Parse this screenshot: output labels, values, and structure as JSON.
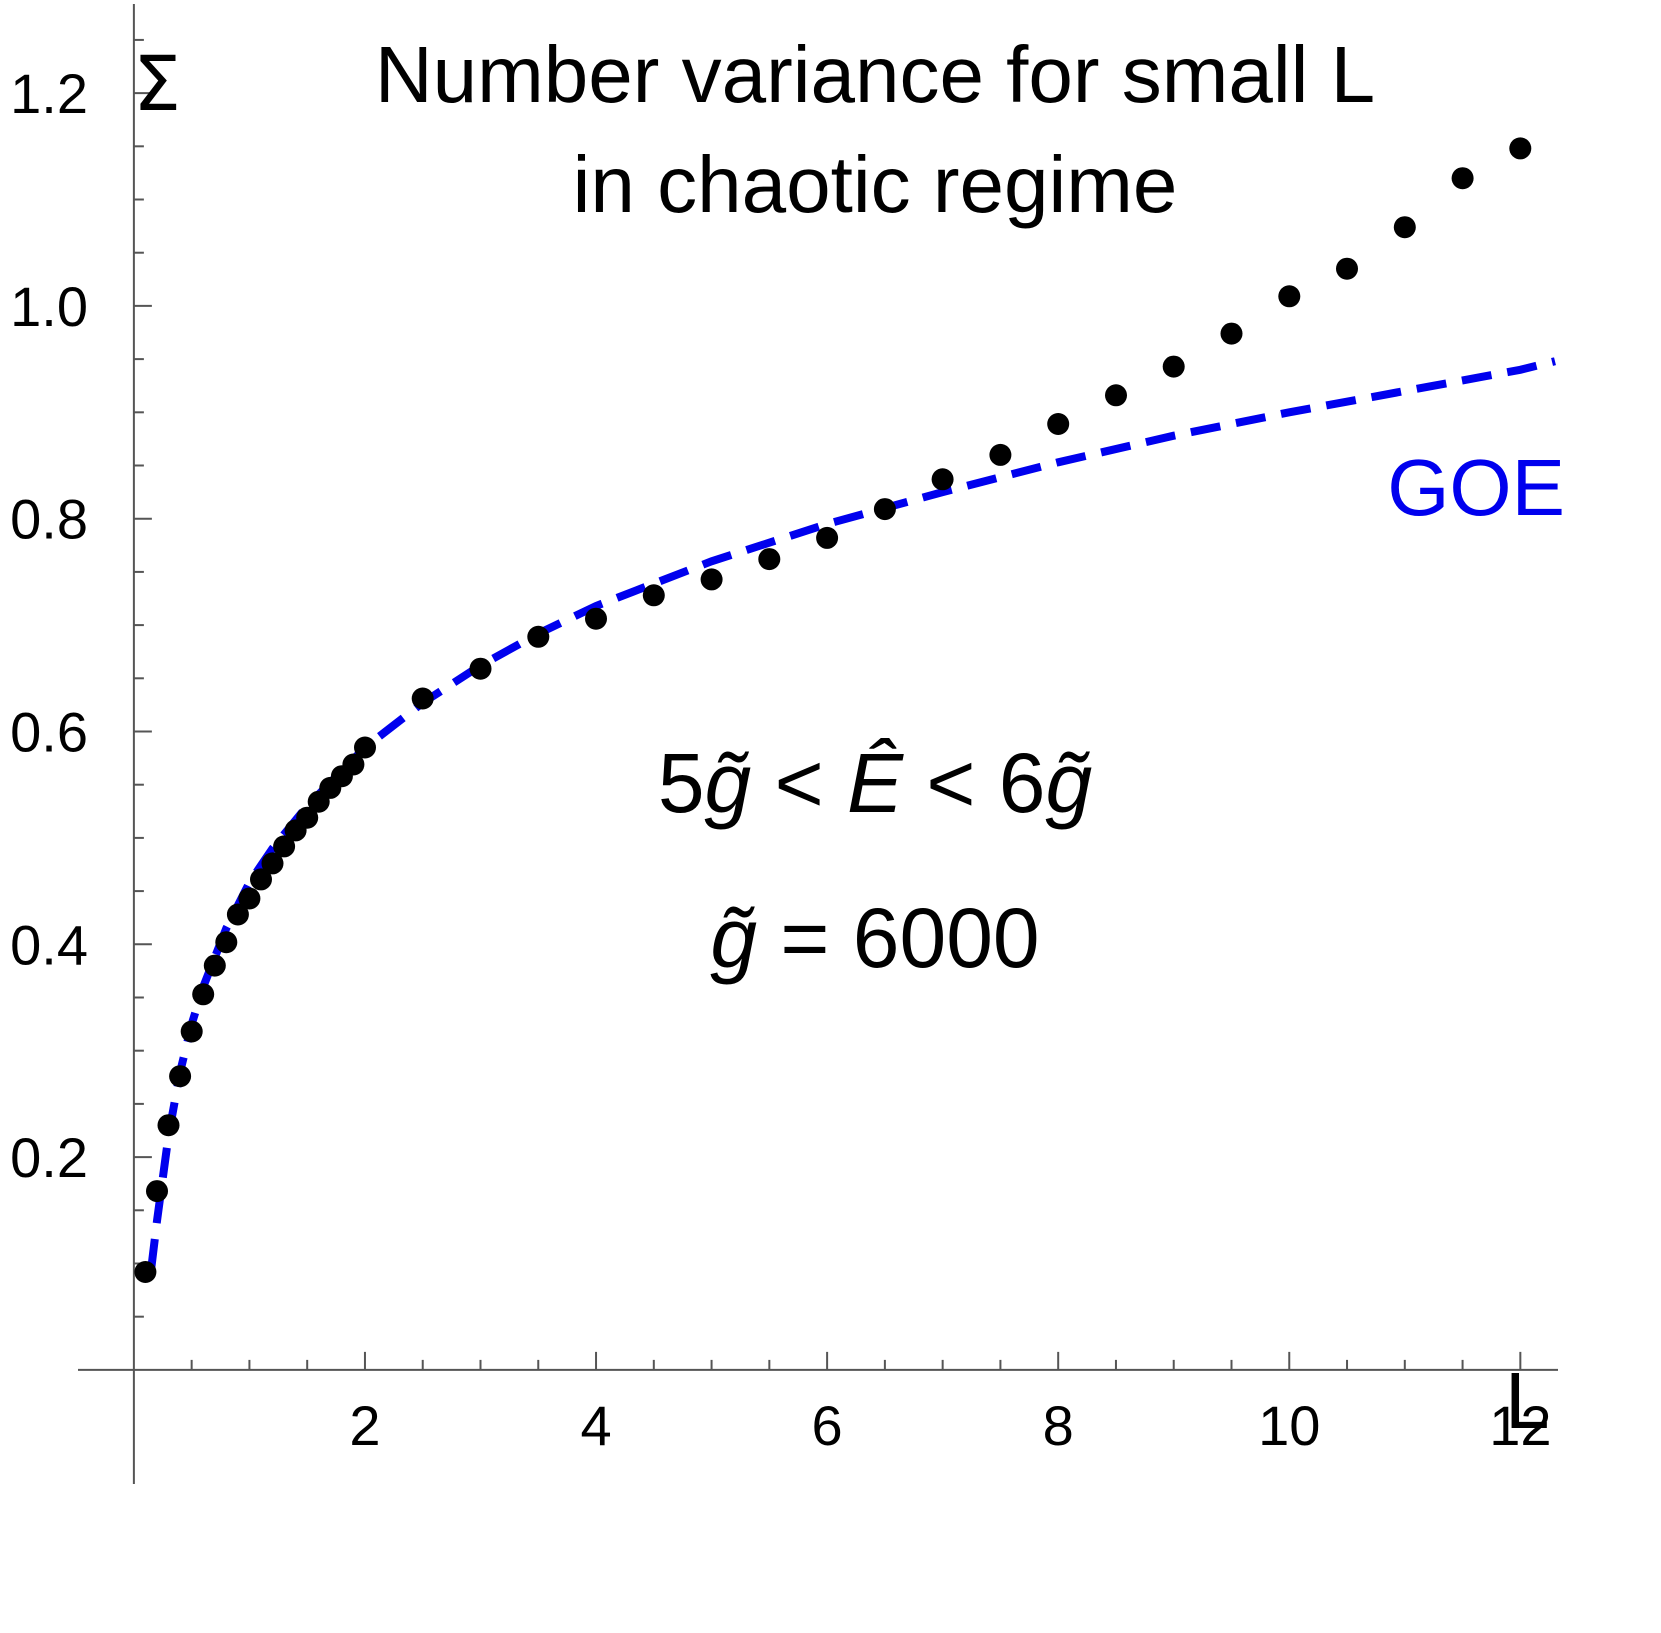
{
  "chart_data": {
    "type": "scatter",
    "title_lines": [
      "Number variance for small L",
      "in chaotic regime"
    ],
    "xlabel": "L",
    "ylabel": "Σ",
    "xlim": [
      -0.25,
      12.3
    ],
    "ylim": [
      -0.08,
      1.28
    ],
    "x_ticks": [
      2,
      4,
      6,
      8,
      10,
      12
    ],
    "x_tick_labels": [
      "2",
      "4",
      "6",
      "8",
      "10",
      "12"
    ],
    "x_minor_ticks": [
      0.5,
      1,
      1.5,
      2.5,
      3,
      3.5,
      4.5,
      5,
      5.5,
      6.5,
      7,
      7.5,
      8.5,
      9,
      9.5,
      10.5,
      11,
      11.5
    ],
    "y_ticks": [
      0.2,
      0.4,
      0.6,
      0.8,
      1.0,
      1.2
    ],
    "y_tick_labels": [
      "0.2",
      "0.4",
      "0.6",
      "0.8",
      "1.0",
      "1.2"
    ],
    "y_minor_ticks": [
      0.05,
      0.1,
      0.15,
      0.25,
      0.3,
      0.35,
      0.45,
      0.5,
      0.55,
      0.65,
      0.7,
      0.75,
      0.85,
      0.9,
      0.95,
      1.05,
      1.1,
      1.15,
      1.25
    ],
    "grid": false,
    "series": [
      {
        "kind": "points",
        "color": "#000000",
        "x": [
          0.1,
          0.2,
          0.3,
          0.4,
          0.5,
          0.6,
          0.7,
          0.8,
          0.9,
          1.0,
          1.1,
          1.2,
          1.3,
          1.4,
          1.5,
          1.6,
          1.7,
          1.8,
          1.9,
          2.0,
          2.5,
          3.0,
          3.5,
          4.0,
          4.5,
          5.0,
          5.5,
          6.0,
          6.5,
          7.0,
          7.5,
          8.0,
          8.5,
          9.0,
          9.5,
          10.0,
          10.5,
          11.0,
          11.5,
          12.0
        ],
        "y": [
          0.092,
          0.168,
          0.23,
          0.276,
          0.318,
          0.353,
          0.38,
          0.402,
          0.428,
          0.443,
          0.461,
          0.476,
          0.492,
          0.507,
          0.519,
          0.534,
          0.547,
          0.558,
          0.569,
          0.585,
          0.631,
          0.659,
          0.689,
          0.706,
          0.728,
          0.743,
          0.762,
          0.782,
          0.809,
          0.837,
          0.86,
          0.889,
          0.916,
          0.943,
          0.974,
          1.009,
          1.035,
          1.074,
          1.12,
          1.148
        ]
      },
      {
        "name": "GOE",
        "kind": "dashed-line",
        "color": "#0000ee",
        "x": [
          0.15,
          0.2,
          0.3,
          0.4,
          0.5,
          0.6,
          0.8,
          1.0,
          1.2,
          1.5,
          2.0,
          2.5,
          3.0,
          3.5,
          4.0,
          5.0,
          6.0,
          7.0,
          8.0,
          9.0,
          10.0,
          11.0,
          12.0,
          12.3
        ],
        "y": [
          0.095,
          0.14,
          0.22,
          0.28,
          0.325,
          0.36,
          0.415,
          0.458,
          0.49,
          0.53,
          0.585,
          0.627,
          0.662,
          0.692,
          0.718,
          0.76,
          0.795,
          0.825,
          0.853,
          0.878,
          0.9,
          0.92,
          0.94,
          0.948
        ]
      }
    ],
    "series_label": "GOE",
    "annotation": {
      "line1": {
        "a": "5",
        "b": "g̃",
        "c": " < ",
        "d": "Ê",
        "e": " < 6",
        "f": "g̃"
      },
      "line2": {
        "a": "g̃",
        "b": " = 6000"
      }
    },
    "colors": {
      "points": "#000000",
      "goe": "#0000ee",
      "axes": "#555555"
    }
  }
}
